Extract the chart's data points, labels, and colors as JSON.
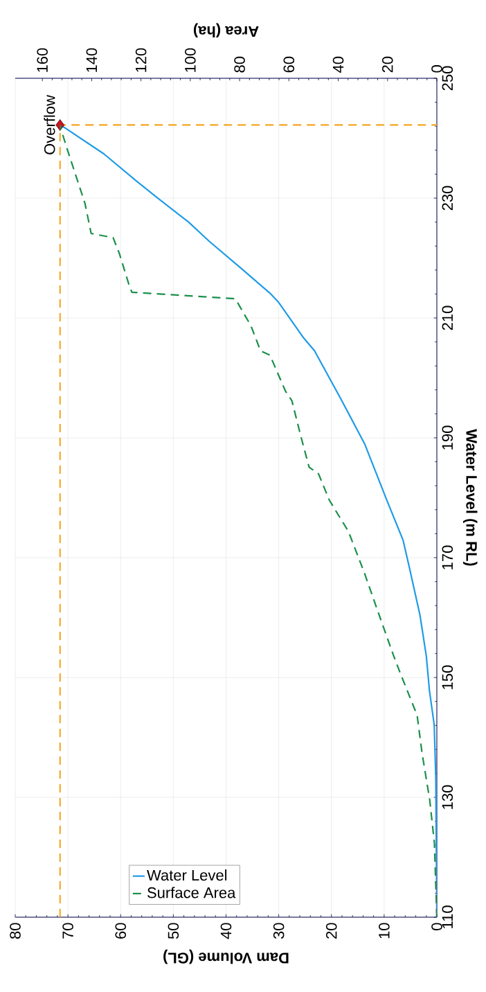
{
  "chart_data": {
    "type": "line",
    "xlabel": "Dam Volume (GL)",
    "ylabel": "Water Level (m RL)",
    "x2label": "Area (ha)",
    "xlim": [
      80,
      0
    ],
    "xticks": [
      80,
      70,
      60,
      50,
      40,
      30,
      20,
      10,
      0
    ],
    "x2lim": [
      171,
      0
    ],
    "x2ticks": [
      160,
      140,
      120,
      100,
      80,
      60,
      40,
      20,
      0
    ],
    "ylim": [
      110,
      250
    ],
    "yticks": [
      110,
      130,
      150,
      170,
      190,
      210,
      230,
      250
    ],
    "grid": true,
    "legend": "bottom left",
    "series": [
      {
        "name": "Water Level",
        "color": "#1e9be6",
        "line_style": "solid",
        "x": [
          0,
          0.2,
          0.5,
          1.4,
          2.0,
          3.2,
          5.3,
          6.4,
          9.5,
          13.7,
          18.4,
          23.2,
          25.3,
          30.1,
          31.5,
          36.9,
          43.2,
          47.1,
          53.1,
          57.2,
          63.2,
          70.7,
          71.5
        ],
        "values": [
          110,
          133.3,
          142.1,
          147.8,
          153.6,
          160.4,
          168.7,
          172.9,
          179.6,
          189.0,
          196.8,
          204.5,
          206.7,
          212.7,
          214.0,
          218.1,
          222.8,
          226.0,
          230.1,
          233.0,
          237.4,
          241.8,
          242.2
        ]
      },
      {
        "name": "Surface Area",
        "color": "#1a8f4a",
        "line_style": "dashed",
        "axis": "x2",
        "x": [
          0,
          1.0,
          2.9,
          6.0,
          8.0,
          15.0,
          17.5,
          22.0,
          29.6,
          35.9,
          41.7,
          43.6,
          48.0,
          51.8,
          55.0,
          58.8,
          61.4,
          67.7,
          71.5,
          75.4,
          79.2,
          81.7,
          123.7,
          124.9,
          128.8,
          131.3,
          140.2,
          142.7,
          149.7,
          152.3,
          152.8
        ],
        "values": [
          110,
          122.4,
          129.6,
          137.4,
          143.7,
          150.9,
          153.6,
          158.8,
          167.7,
          174.4,
          178.3,
          179.6,
          184.0,
          185.1,
          190.0,
          196.2,
          197.8,
          203.8,
          204.5,
          208.7,
          211.4,
          213.2,
          214.3,
          215.6,
          220.8,
          223.4,
          224.1,
          229.1,
          237.9,
          241.3,
          242.2
        ]
      },
      {
        "color": "#f5a51e",
        "line_style": "dashed",
        "x": [
          71.5,
          71.5,
          0
        ],
        "values": [
          110,
          242.2,
          242.2
        ]
      },
      {
        "type": "scatter",
        "color": "#d0101e",
        "marker": "diamond",
        "x": [
          71.5
        ],
        "values": [
          242.2
        ]
      }
    ],
    "annotations": [
      {
        "text": "Overflow",
        "x": 71.5,
        "y": 242.2
      }
    ]
  }
}
